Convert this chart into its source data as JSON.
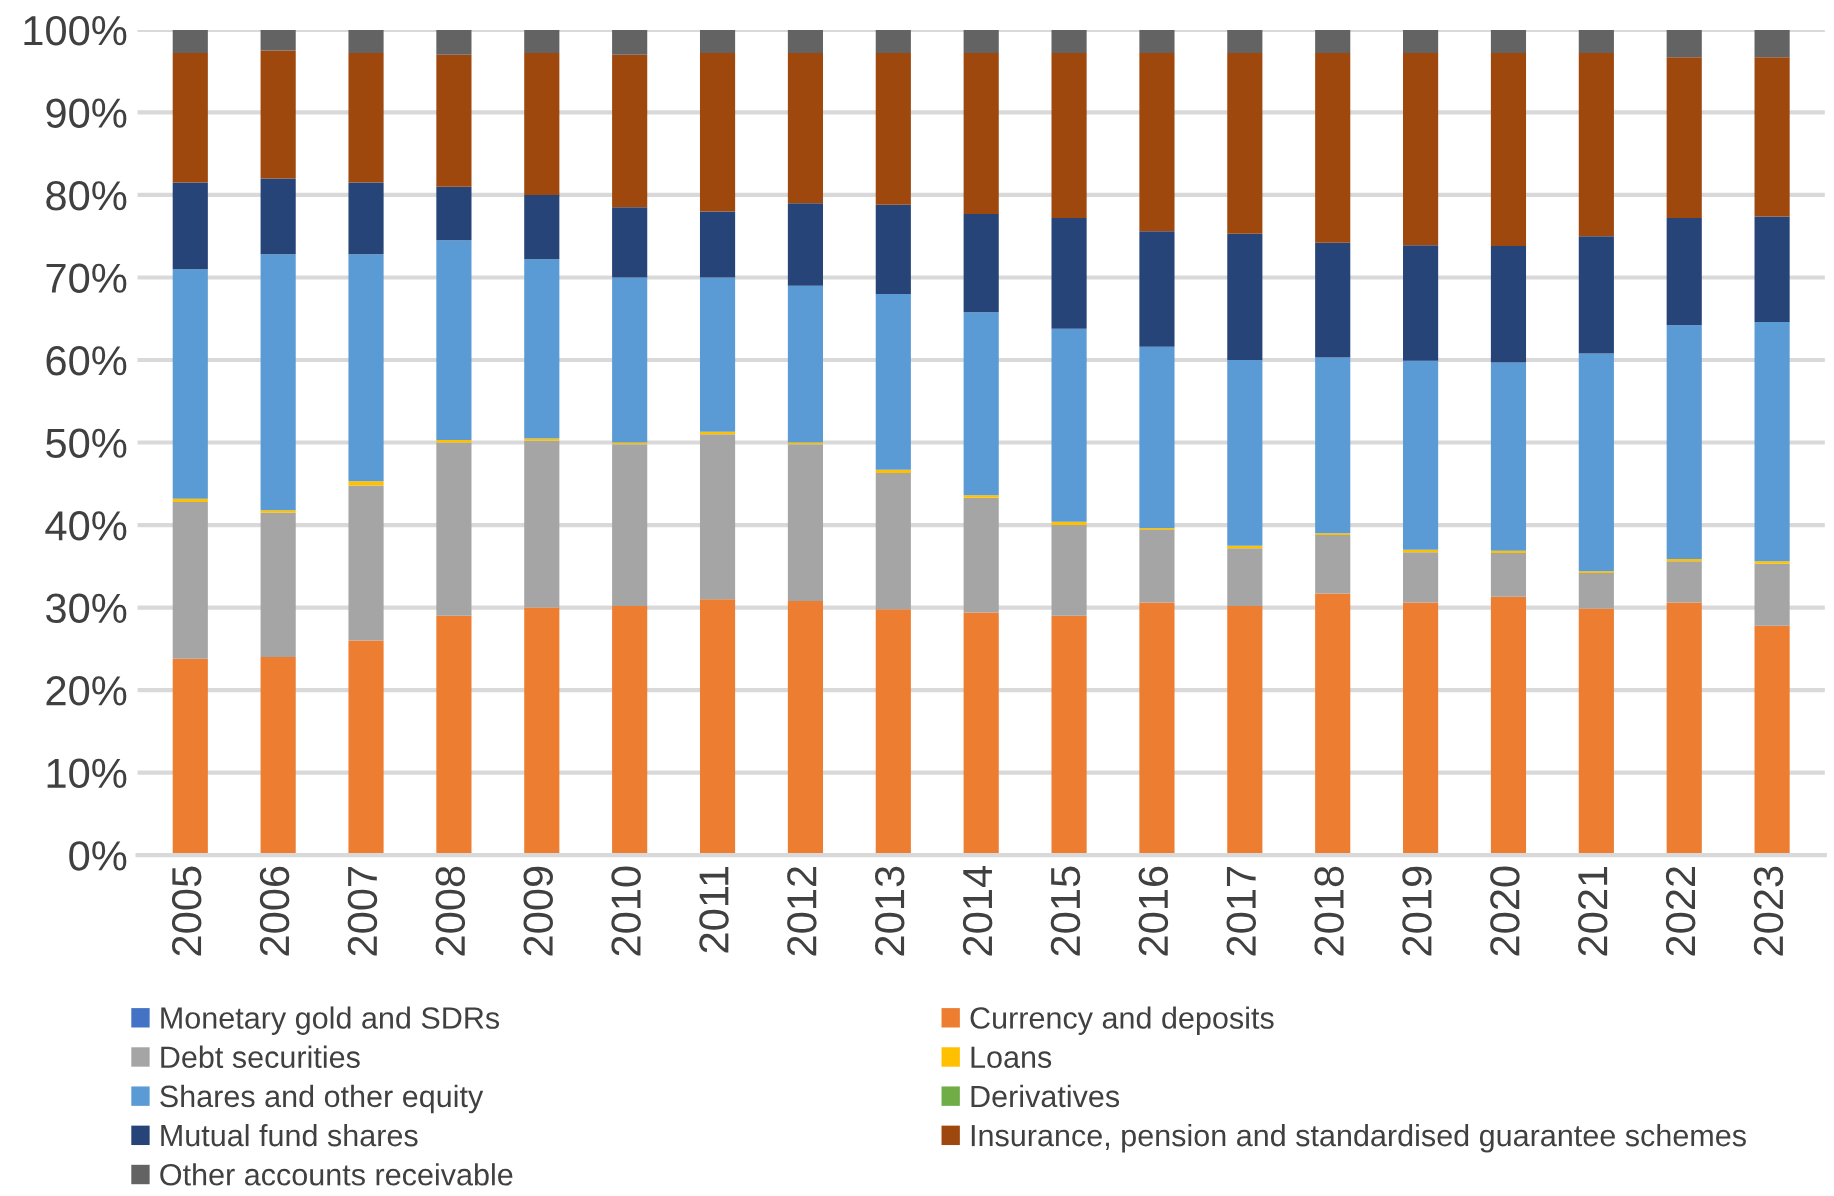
{
  "chart_data": {
    "type": "bar",
    "stacked": true,
    "categories": [
      "2005",
      "2006",
      "2007",
      "2008",
      "2009",
      "2010",
      "2011",
      "2012",
      "2013",
      "2014",
      "2015",
      "2016",
      "2017",
      "2018",
      "2019",
      "2020",
      "2021",
      "2022",
      "2023"
    ],
    "series": [
      {
        "name": "Monetary gold and SDRs",
        "color": "#4472c4",
        "values": [
          0,
          0,
          0,
          0,
          0,
          0,
          0,
          0,
          0,
          0,
          0,
          0,
          0,
          0,
          0,
          0,
          0,
          0,
          0
        ]
      },
      {
        "name": "Currency and deposits",
        "color": "#ed7d31",
        "values": [
          23.8,
          24.0,
          26.0,
          29.0,
          30.0,
          30.2,
          31.0,
          30.8,
          29.8,
          29.4,
          29.0,
          30.6,
          30.2,
          31.7,
          30.6,
          31.3,
          29.9,
          30.6,
          27.8
        ]
      },
      {
        "name": "Debt securities",
        "color": "#a5a5a5",
        "values": [
          19.0,
          17.5,
          18.8,
          21.0,
          20.2,
          19.6,
          20.0,
          19.0,
          16.5,
          13.9,
          11.0,
          8.8,
          7.0,
          7.1,
          6.1,
          5.3,
          4.3,
          5.0,
          7.5
        ]
      },
      {
        "name": "Loans",
        "color": "#ffc000",
        "values": [
          0.4,
          0.3,
          0.5,
          0.3,
          0.3,
          0.2,
          0.3,
          0.2,
          0.4,
          0.3,
          0.4,
          0.2,
          0.3,
          0.2,
          0.3,
          0.3,
          0.2,
          0.3,
          0.3
        ]
      },
      {
        "name": "Shares and other equity",
        "color": "#5b9bd5",
        "values": [
          27.8,
          31.0,
          27.5,
          24.2,
          21.7,
          20.0,
          18.7,
          19.0,
          21.3,
          22.2,
          23.4,
          22.0,
          22.5,
          21.3,
          22.9,
          22.8,
          26.4,
          28.3,
          29.0
        ]
      },
      {
        "name": "Derivatives",
        "color": "#70ad47",
        "values": [
          0,
          0,
          0,
          0,
          0,
          0,
          0,
          0,
          0,
          0,
          0,
          0,
          0,
          0,
          0,
          0,
          0,
          0,
          0
        ]
      },
      {
        "name": "Mutual fund shares",
        "color": "#264478",
        "values": [
          10.5,
          9.2,
          8.7,
          6.5,
          7.8,
          8.5,
          8.0,
          10.0,
          10.8,
          11.9,
          13.4,
          14.0,
          15.3,
          13.9,
          14.0,
          14.1,
          14.2,
          13.0,
          12.8
        ]
      },
      {
        "name": "Insurance, pension and standardised guarantee schemes",
        "color": "#9e480e",
        "values": [
          15.7,
          15.5,
          15.7,
          16.0,
          17.2,
          18.5,
          19.2,
          18.2,
          18.4,
          19.5,
          20.0,
          21.6,
          21.9,
          23.0,
          23.3,
          23.4,
          22.2,
          19.5,
          19.3
        ]
      },
      {
        "name": "Other accounts receivable",
        "color": "#636363",
        "values": [
          2.8,
          2.5,
          2.8,
          3.0,
          2.8,
          3.0,
          2.8,
          2.8,
          2.8,
          2.8,
          2.8,
          2.8,
          2.8,
          2.8,
          2.8,
          2.8,
          2.8,
          3.3,
          3.3
        ]
      }
    ],
    "ylim": [
      0,
      100
    ],
    "yticks": [
      {
        "value": 0,
        "label": "0%"
      },
      {
        "value": 10,
        "label": "10%"
      },
      {
        "value": 20,
        "label": "20%"
      },
      {
        "value": 30,
        "label": "30%"
      },
      {
        "value": 40,
        "label": "40%"
      },
      {
        "value": 50,
        "label": "50%"
      },
      {
        "value": 60,
        "label": "60%"
      },
      {
        "value": 70,
        "label": "70%"
      },
      {
        "value": 80,
        "label": "80%"
      },
      {
        "value": 90,
        "label": "90%"
      },
      {
        "value": 100,
        "label": "100%"
      }
    ],
    "grid": "y",
    "legend": "bottom"
  }
}
